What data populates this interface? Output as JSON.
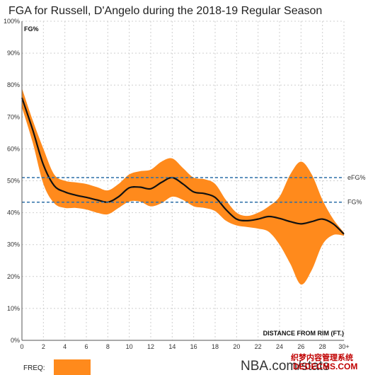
{
  "chart_data": {
    "type": "area",
    "title": "FGA for Russell, D'Angelo during the 2018-19 Regular Season",
    "ylabel": "FG%",
    "xlabel": "DISTANCE FROM RIM (FT.)",
    "x_tick_labels": [
      "0",
      "2",
      "4",
      "6",
      "8",
      "10",
      "12",
      "14",
      "16",
      "18",
      "20",
      "22",
      "24",
      "26",
      "28",
      "30+"
    ],
    "y_tick_labels": [
      "0%",
      "10%",
      "20%",
      "30%",
      "40%",
      "50%",
      "60%",
      "70%",
      "80%",
      "90%",
      "100%"
    ],
    "xlim": [
      0,
      30
    ],
    "ylim": [
      0,
      100
    ],
    "grid": true,
    "x": [
      0,
      1,
      2,
      3,
      4,
      5,
      6,
      7,
      8,
      9,
      10,
      11,
      12,
      13,
      14,
      15,
      16,
      17,
      18,
      19,
      20,
      21,
      22,
      23,
      24,
      25,
      26,
      27,
      28,
      29,
      30
    ],
    "series": [
      {
        "name": "FG%",
        "role": "line",
        "color": "#111111",
        "values": [
          76,
          66,
          55,
          48.5,
          46.5,
          45.5,
          44.8,
          44,
          43.3,
          45,
          47.8,
          48,
          47.5,
          49.5,
          51,
          49,
          46.5,
          46,
          44.8,
          41,
          38,
          37.5,
          38,
          38.8,
          38.2,
          37.2,
          36.5,
          37.2,
          38,
          36.5,
          33.3
        ]
      },
      {
        "name": "band_upper",
        "role": "band-upper",
        "color": "#ff8a1c",
        "values": [
          79,
          69,
          60,
          52,
          50,
          49.5,
          49,
          48,
          47,
          49,
          52,
          53,
          53.5,
          56,
          57,
          54,
          51,
          50.5,
          49,
          44,
          40,
          39,
          40,
          42,
          45,
          52,
          56,
          52,
          44,
          38,
          33.8
        ]
      },
      {
        "name": "band_lower",
        "role": "band-lower",
        "color": "#ff8a1c",
        "values": [
          73,
          62,
          49,
          43,
          41.5,
          41.5,
          41,
          40,
          39.5,
          41.5,
          43.5,
          43.5,
          42,
          43,
          45,
          44,
          42,
          41.5,
          40.5,
          37.5,
          36,
          35.5,
          35,
          34,
          30,
          24,
          17.5,
          22,
          30,
          33,
          32.8
        ]
      }
    ],
    "reference_lines": [
      {
        "label": "eFG%",
        "value": 51,
        "color": "#2c6fa8",
        "style": "dashed"
      },
      {
        "label": "FG%",
        "value": 43.3,
        "color": "#2c6fa8",
        "style": "dashed"
      }
    ],
    "legend": {
      "label": "FREQ:",
      "swatch_color": "#ff8a1c"
    },
    "brand": "NBA.com/stats"
  },
  "watermark": {
    "top": "织梦内容管理系统",
    "bottom": "DEDECMS.COM"
  }
}
